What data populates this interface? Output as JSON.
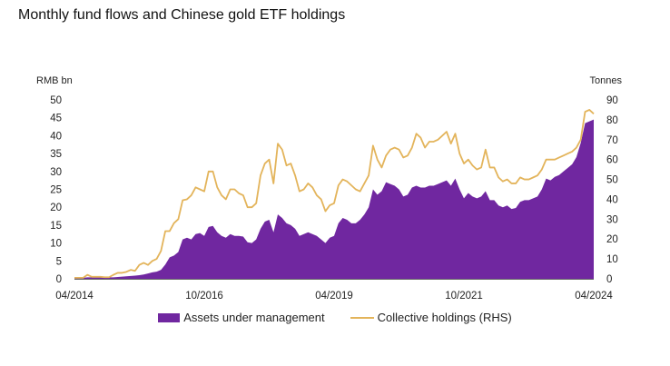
{
  "chart_data": {
    "type": "area",
    "title": "Monthly fund flows and Chinese gold ETF holdings",
    "left_axis_label": "RMB bn",
    "right_axis_label": "Tonnes",
    "left_ylim": [
      0,
      50
    ],
    "right_ylim": [
      0,
      90
    ],
    "left_ticks": [
      0,
      5,
      10,
      15,
      20,
      25,
      30,
      35,
      40,
      45,
      50
    ],
    "right_ticks": [
      0,
      10,
      20,
      30,
      40,
      50,
      60,
      70,
      80,
      90
    ],
    "x_tick_labels": [
      "04/2014",
      "10/2016",
      "04/2019",
      "10/2021",
      "04/2024"
    ],
    "grid": false,
    "legend_position": "bottom",
    "colors": {
      "area": "#7027A0",
      "line": "#E3B45B"
    },
    "series": [
      {
        "name": "Assets under management",
        "axis": "left",
        "style": "area",
        "x": [
          0,
          1,
          2,
          3,
          4,
          5,
          6,
          7,
          8,
          9,
          10,
          11,
          12,
          13,
          14,
          15,
          16,
          17,
          18,
          19,
          20,
          21,
          22,
          23,
          24,
          25,
          26,
          27,
          28,
          29,
          30,
          31,
          32,
          33,
          34,
          35,
          36,
          37,
          38,
          39,
          40,
          41,
          42,
          43,
          44,
          45,
          46,
          47,
          48,
          49,
          50,
          51,
          52,
          53,
          54,
          55,
          56,
          57,
          58,
          59,
          60,
          61,
          62,
          63,
          64,
          65,
          66,
          67,
          68,
          69,
          70,
          71,
          72,
          73,
          74,
          75,
          76,
          77,
          78,
          79,
          80,
          81,
          82,
          83,
          84,
          85,
          86,
          87,
          88,
          89,
          90,
          91,
          92,
          93,
          94,
          95,
          96,
          97,
          98,
          99,
          100,
          101,
          102,
          103,
          104,
          105,
          106,
          107,
          108,
          109,
          110,
          111,
          112,
          113,
          114,
          115,
          116,
          117,
          118,
          119,
          120
        ],
        "values": [
          0.3,
          0.3,
          0.3,
          0.4,
          0.4,
          0.4,
          0.4,
          0.4,
          0.4,
          0.4,
          0.5,
          0.6,
          0.7,
          0.8,
          0.9,
          1.0,
          1.2,
          1.5,
          1.8,
          2.0,
          2.5,
          4.0,
          6.0,
          6.5,
          7.5,
          11.0,
          11.5,
          11.0,
          12.5,
          12.8,
          12.0,
          14.5,
          14.8,
          13.0,
          12.0,
          11.5,
          12.5,
          12.0,
          12.0,
          11.8,
          10.2,
          10.0,
          11.0,
          14.0,
          16.0,
          16.5,
          13.0,
          18.0,
          17.0,
          15.5,
          15.0,
          14.0,
          12.0,
          12.5,
          13.0,
          12.5,
          12.0,
          11.0,
          10.0,
          11.5,
          12.0,
          15.5,
          17.0,
          16.5,
          15.5,
          15.5,
          16.5,
          18.0,
          20.0,
          25.0,
          23.5,
          24.5,
          27.0,
          26.5,
          26.0,
          25.0,
          23.0,
          23.5,
          25.5,
          26.0,
          25.5,
          25.5,
          26.0,
          26.0,
          26.5,
          27.0,
          27.5,
          26.0,
          28.0,
          25.0,
          22.5,
          24.0,
          23.0,
          22.5,
          23.0,
          24.5,
          22.0,
          22.0,
          20.5,
          20.0,
          20.5,
          19.5,
          19.8,
          21.5,
          22.0,
          22.0,
          22.5,
          23.0,
          25.0,
          28.0,
          27.5,
          28.5,
          29.0,
          30.0,
          31.0,
          32.0,
          34.0,
          38.0,
          43.5,
          44.0,
          44.5
        ]
      },
      {
        "name": "Collective holdings (RHS)",
        "axis": "right",
        "style": "line",
        "x": [
          0,
          1,
          2,
          3,
          4,
          5,
          6,
          7,
          8,
          9,
          10,
          11,
          12,
          13,
          14,
          15,
          16,
          17,
          18,
          19,
          20,
          21,
          22,
          23,
          24,
          25,
          26,
          27,
          28,
          29,
          30,
          31,
          32,
          33,
          34,
          35,
          36,
          37,
          38,
          39,
          40,
          41,
          42,
          43,
          44,
          45,
          46,
          47,
          48,
          49,
          50,
          51,
          52,
          53,
          54,
          55,
          56,
          57,
          58,
          59,
          60,
          61,
          62,
          63,
          64,
          65,
          66,
          67,
          68,
          69,
          70,
          71,
          72,
          73,
          74,
          75,
          76,
          77,
          78,
          79,
          80,
          81,
          82,
          83,
          84,
          85,
          86,
          87,
          88,
          89,
          90,
          91,
          92,
          93,
          94,
          95,
          96,
          97,
          98,
          99,
          100,
          101,
          102,
          103,
          104,
          105,
          106,
          107,
          108,
          109,
          110,
          111,
          112,
          113,
          114,
          115,
          116,
          117,
          118,
          119,
          120
        ],
        "values": [
          0.5,
          0.5,
          0.5,
          2.0,
          1.0,
          1.0,
          1.0,
          0.8,
          0.8,
          2.0,
          3.0,
          3.0,
          3.5,
          4.5,
          4.0,
          7.0,
          8.0,
          7.0,
          9.0,
          10.0,
          14.0,
          24.0,
          24.0,
          28.0,
          30.0,
          39.5,
          40.0,
          42.0,
          46.0,
          45.0,
          44.0,
          54.0,
          54.0,
          46.0,
          42.0,
          40.0,
          45.0,
          45.0,
          43.0,
          42.0,
          36.0,
          36.0,
          38.0,
          52.0,
          58.0,
          60.0,
          48.0,
          68.0,
          65.0,
          57.0,
          58.0,
          52.0,
          44.0,
          45.0,
          48.0,
          46.0,
          42.0,
          40.0,
          34.0,
          37.0,
          38.0,
          47.0,
          50.0,
          49.0,
          47.0,
          45.0,
          44.0,
          48.0,
          52.0,
          67.0,
          60.0,
          56.0,
          62.0,
          65.0,
          66.0,
          65.0,
          61.0,
          62.0,
          66.0,
          73.0,
          71.0,
          66.0,
          69.0,
          69.0,
          70.0,
          72.0,
          74.0,
          68.0,
          73.0,
          63.0,
          58.0,
          60.0,
          57.0,
          55.0,
          56.0,
          65.0,
          56.0,
          56.0,
          51.0,
          49.0,
          50.0,
          48.0,
          48.0,
          51.0,
          50.0,
          50.0,
          51.0,
          52.0,
          55.0,
          60.0,
          60.0,
          60.0,
          61.0,
          62.0,
          63.0,
          64.0,
          66.0,
          70.0,
          84.0,
          85.0,
          83.0
        ]
      }
    ]
  }
}
